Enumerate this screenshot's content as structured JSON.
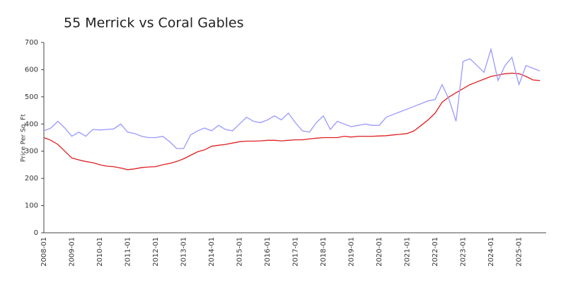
{
  "chart_data": {
    "type": "line",
    "title": "55 Merrick  vs Coral Gables",
    "y_label": "Price Per Sq. Ft",
    "categories": [
      "2008-01",
      null,
      null,
      null,
      "2009-01",
      null,
      null,
      null,
      "2010-01",
      null,
      null,
      null,
      "2011-01",
      null,
      null,
      null,
      "2012-01",
      null,
      null,
      null,
      "2013-01",
      null,
      null,
      null,
      "2014-01",
      null,
      null,
      null,
      "2015-01",
      null,
      null,
      null,
      "2016-01",
      null,
      null,
      null,
      "2017-01",
      null,
      null,
      null,
      "2018-01",
      null,
      null,
      null,
      "2019-01",
      null,
      null,
      null,
      "2020-01",
      null,
      null,
      null,
      "2021-01",
      null,
      null,
      null,
      "2022-01",
      null,
      null,
      null,
      "2023-01",
      null,
      null,
      null,
      "2024-01",
      null,
      null,
      null,
      "2025-01",
      null,
      null,
      null
    ],
    "series": [
      {
        "color": "#e02020",
        "values": [
          350,
          340,
          325,
          300,
          275,
          268,
          262,
          258,
          250,
          245,
          243,
          238,
          232,
          235,
          240,
          242,
          243,
          250,
          255,
          262,
          272,
          285,
          298,
          305,
          318,
          322,
          325,
          330,
          335,
          337,
          337,
          338,
          340,
          340,
          338,
          340,
          342,
          342,
          345,
          348,
          350,
          350,
          350,
          355,
          352,
          355,
          355,
          355,
          356,
          357,
          360,
          362,
          365,
          375,
          395,
          415,
          440,
          480,
          500,
          515,
          530,
          545,
          555,
          565,
          575,
          580,
          585,
          587,
          585,
          575,
          562,
          560
        ]
      },
      {
        "color": "#9999ff",
        "values": [
          375,
          385,
          410,
          385,
          355,
          370,
          355,
          380,
          378,
          380,
          382,
          400,
          370,
          365,
          355,
          350,
          350,
          355,
          335,
          310,
          310,
          360,
          375,
          385,
          375,
          395,
          380,
          375,
          400,
          425,
          410,
          405,
          415,
          430,
          415,
          440,
          405,
          375,
          370,
          405,
          430,
          380,
          410,
          400,
          390,
          395,
          400,
          395,
          395,
          425,
          435,
          445,
          455,
          465,
          475,
          485,
          490,
          545,
          490,
          410,
          630,
          640,
          615,
          590,
          675,
          560,
          615,
          645,
          545,
          615,
          605,
          595
        ]
      }
    ],
    "ylim": [
      0,
      700
    ],
    "yticks": [
      0,
      100,
      200,
      300,
      400,
      500,
      600,
      700
    ]
  }
}
